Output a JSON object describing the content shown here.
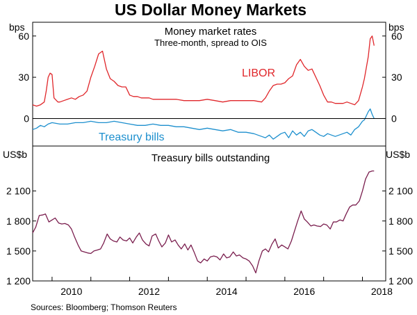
{
  "title": "US Dollar Money Markets",
  "source": "Sources: Bloomberg; Thomson Reuters",
  "colors": {
    "libor": "#e0262a",
    "tbills": "#1c8fce",
    "outstanding": "#7a1e4e",
    "axis": "#000000"
  },
  "chart_data": [
    {
      "type": "line",
      "title": "Money market rates",
      "subtitle": "Three-month, spread to OIS",
      "unit_left": "bps",
      "unit_right": "bps",
      "ylim": [
        -20,
        70
      ],
      "yticks": [
        0,
        30,
        60
      ],
      "xlim": [
        2009.5,
        2018.6
      ],
      "series": [
        {
          "name": "LIBOR",
          "x": [
            2009.5,
            2009.6,
            2009.7,
            2009.8,
            2009.85,
            2009.9,
            2009.95,
            2010.0,
            2010.05,
            2010.15,
            2010.2,
            2010.3,
            2010.4,
            2010.5,
            2010.6,
            2010.7,
            2010.8,
            2010.9,
            2011.0,
            2011.1,
            2011.2,
            2011.3,
            2011.4,
            2011.5,
            2011.6,
            2011.7,
            2011.8,
            2011.9,
            2012.0,
            2012.1,
            2012.2,
            2012.3,
            2012.4,
            2012.5,
            2012.6,
            2012.7,
            2012.8,
            2012.9,
            2013.0,
            2013.2,
            2013.4,
            2013.6,
            2013.8,
            2014.0,
            2014.2,
            2014.4,
            2014.6,
            2014.8,
            2015.0,
            2015.2,
            2015.4,
            2015.5,
            2015.6,
            2015.7,
            2015.8,
            2015.9,
            2016.0,
            2016.1,
            2016.2,
            2016.3,
            2016.4,
            2016.5,
            2016.6,
            2016.7,
            2016.8,
            2016.9,
            2017.0,
            2017.1,
            2017.2,
            2017.3,
            2017.4,
            2017.5,
            2017.6,
            2017.7,
            2017.8,
            2017.9,
            2018.0,
            2018.05,
            2018.1,
            2018.15,
            2018.2,
            2018.25,
            2018.3
          ],
          "values": [
            10,
            9,
            10,
            12,
            20,
            30,
            33,
            32,
            15,
            12,
            12,
            13,
            14,
            15,
            14,
            16,
            17,
            20,
            30,
            38,
            47,
            49,
            36,
            29,
            27,
            24,
            23,
            23,
            17,
            16,
            16,
            15,
            15,
            15,
            14,
            14,
            14,
            14,
            14,
            14,
            13,
            13,
            13,
            14,
            13,
            12,
            13,
            13,
            13,
            13,
            12,
            15,
            20,
            24,
            25,
            25,
            26,
            29,
            31,
            39,
            43,
            38,
            35,
            36,
            30,
            24,
            17,
            12,
            12,
            11,
            11,
            11,
            12,
            11,
            10,
            13,
            23,
            29,
            37,
            45,
            58,
            60,
            53
          ]
        },
        {
          "name": "Treasury bills",
          "x": [
            2009.5,
            2009.6,
            2009.7,
            2009.8,
            2009.9,
            2010.0,
            2010.2,
            2010.4,
            2010.6,
            2010.8,
            2011.0,
            2011.2,
            2011.4,
            2011.6,
            2011.8,
            2012.0,
            2012.2,
            2012.4,
            2012.6,
            2012.8,
            2013.0,
            2013.2,
            2013.4,
            2013.6,
            2013.8,
            2014.0,
            2014.2,
            2014.4,
            2014.6,
            2014.8,
            2015.0,
            2015.2,
            2015.3,
            2015.4,
            2015.5,
            2015.6,
            2015.7,
            2015.8,
            2015.9,
            2016.0,
            2016.1,
            2016.2,
            2016.3,
            2016.4,
            2016.5,
            2016.6,
            2016.7,
            2016.8,
            2016.9,
            2017.0,
            2017.1,
            2017.2,
            2017.3,
            2017.4,
            2017.5,
            2017.6,
            2017.7,
            2017.8,
            2017.9,
            2018.0,
            2018.05,
            2018.1,
            2018.15,
            2018.2,
            2018.25,
            2018.3
          ],
          "values": [
            -8,
            -7,
            -5,
            -6,
            -4,
            -3,
            -4,
            -4,
            -3,
            -3,
            -2,
            -3,
            -3,
            -2,
            -3,
            -4,
            -5,
            -5,
            -4,
            -5,
            -5,
            -6,
            -6,
            -7,
            -8,
            -7,
            -8,
            -9,
            -8,
            -10,
            -10,
            -11,
            -12,
            -13,
            -14,
            -12,
            -15,
            -13,
            -11,
            -10,
            -14,
            -9,
            -12,
            -10,
            -13,
            -9,
            -8,
            -10,
            -12,
            -13,
            -11,
            -12,
            -13,
            -12,
            -11,
            -10,
            -12,
            -8,
            -6,
            -2,
            -1,
            2,
            5,
            7,
            3,
            0
          ]
        }
      ]
    },
    {
      "type": "line",
      "title": "Treasury bills outstanding",
      "unit_left": "US$b",
      "unit_right": "US$b",
      "ylim": [
        1200,
        2550
      ],
      "yticks": [
        1200,
        1500,
        1800,
        2100
      ],
      "ytick_labels": [
        "1 200",
        "1 500",
        "1 800",
        "2 100"
      ],
      "xlim": [
        2009.5,
        2018.6
      ],
      "xticks": [
        2010,
        2012,
        2014,
        2016,
        2018
      ],
      "xtick_labels": [
        "2010",
        "2012",
        "2014",
        "2016",
        "2018"
      ],
      "series": [
        {
          "name": "",
          "x": [
            2009.5,
            2009.58,
            2009.67,
            2009.75,
            2009.83,
            2009.92,
            2010.0,
            2010.08,
            2010.17,
            2010.25,
            2010.33,
            2010.42,
            2010.5,
            2010.58,
            2010.67,
            2010.75,
            2010.83,
            2010.92,
            2011.0,
            2011.08,
            2011.17,
            2011.25,
            2011.33,
            2011.42,
            2011.5,
            2011.58,
            2011.67,
            2011.75,
            2011.83,
            2011.92,
            2012.0,
            2012.08,
            2012.17,
            2012.25,
            2012.33,
            2012.42,
            2012.5,
            2012.58,
            2012.67,
            2012.75,
            2012.83,
            2012.92,
            2013.0,
            2013.08,
            2013.17,
            2013.25,
            2013.33,
            2013.42,
            2013.5,
            2013.58,
            2013.67,
            2013.75,
            2013.83,
            2013.92,
            2014.0,
            2014.08,
            2014.17,
            2014.25,
            2014.33,
            2014.42,
            2014.5,
            2014.58,
            2014.67,
            2014.75,
            2014.83,
            2014.92,
            2015.0,
            2015.08,
            2015.17,
            2015.25,
            2015.33,
            2015.42,
            2015.5,
            2015.58,
            2015.67,
            2015.75,
            2015.83,
            2015.92,
            2016.0,
            2016.08,
            2016.17,
            2016.25,
            2016.33,
            2016.42,
            2016.5,
            2016.58,
            2016.67,
            2016.75,
            2016.83,
            2016.92,
            2017.0,
            2017.08,
            2017.17,
            2017.25,
            2017.33,
            2017.42,
            2017.5,
            2017.58,
            2017.67,
            2017.75,
            2017.83,
            2017.92,
            2018.0,
            2018.08,
            2018.17,
            2018.25,
            2018.3
          ],
          "values": [
            1680,
            1740,
            1855,
            1860,
            1870,
            1790,
            1810,
            1830,
            1780,
            1770,
            1775,
            1760,
            1720,
            1640,
            1560,
            1500,
            1490,
            1480,
            1475,
            1500,
            1510,
            1520,
            1580,
            1670,
            1620,
            1600,
            1590,
            1640,
            1610,
            1600,
            1630,
            1580,
            1640,
            1680,
            1610,
            1570,
            1550,
            1650,
            1670,
            1600,
            1540,
            1580,
            1660,
            1590,
            1610,
            1560,
            1520,
            1570,
            1510,
            1560,
            1480,
            1400,
            1380,
            1420,
            1400,
            1440,
            1450,
            1440,
            1410,
            1470,
            1430,
            1440,
            1490,
            1450,
            1460,
            1430,
            1420,
            1400,
            1350,
            1280,
            1400,
            1500,
            1520,
            1490,
            1570,
            1620,
            1530,
            1560,
            1540,
            1520,
            1600,
            1700,
            1800,
            1900,
            1820,
            1790,
            1750,
            1760,
            1750,
            1745,
            1770,
            1760,
            1720,
            1790,
            1790,
            1810,
            1800,
            1870,
            1940,
            1960,
            1960,
            2000,
            2100,
            2220,
            2290,
            2300,
            2300
          ]
        }
      ]
    }
  ]
}
